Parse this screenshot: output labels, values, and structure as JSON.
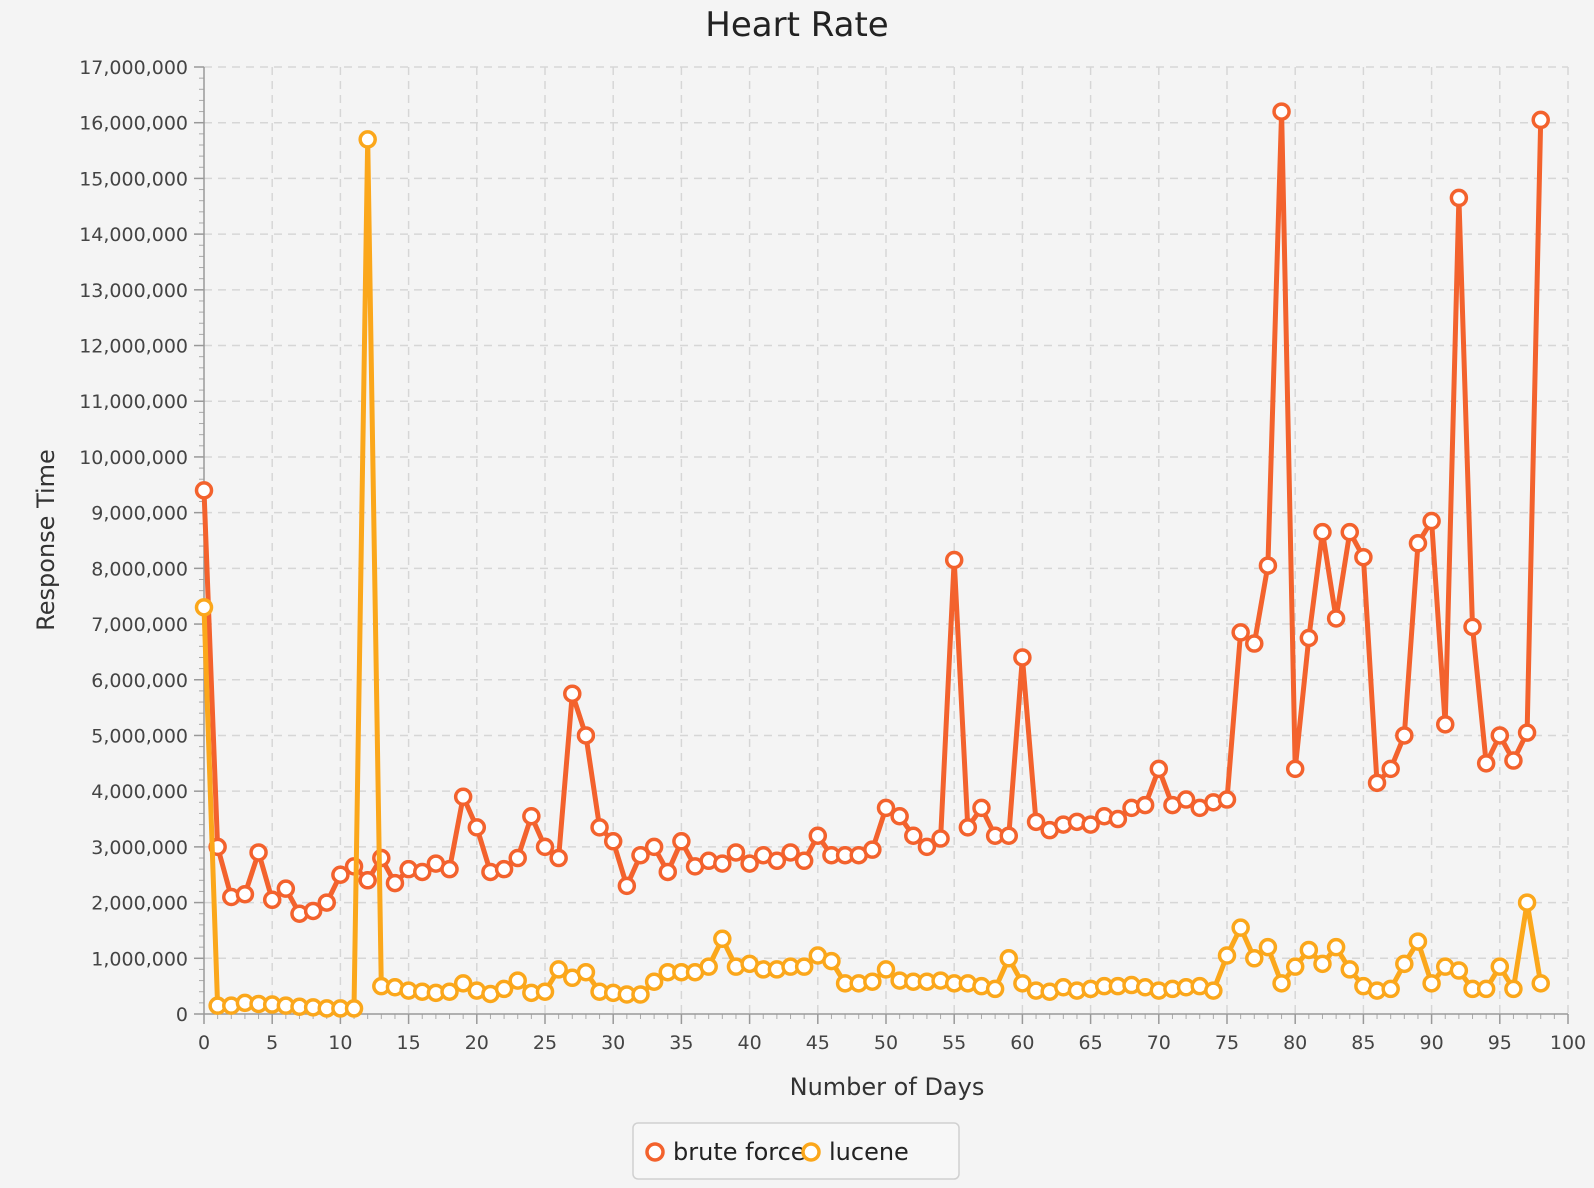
{
  "chart_data": {
    "type": "line",
    "title": "Heart Rate",
    "xlabel": "Number of Days",
    "ylabel": "Response Time",
    "xlim": [
      0,
      100
    ],
    "ylim": [
      0,
      17000000
    ],
    "x_ticks": [
      0,
      5,
      10,
      15,
      20,
      25,
      30,
      35,
      40,
      45,
      50,
      55,
      60,
      65,
      70,
      75,
      80,
      85,
      90,
      95,
      100
    ],
    "x_tick_labels": [
      "0",
      "5",
      "10",
      "15",
      "20",
      "25",
      "30",
      "35",
      "40",
      "45",
      "50",
      "55",
      "60",
      "65",
      "70",
      "75",
      "80",
      "85",
      "90",
      "95",
      "100"
    ],
    "y_ticks": [
      0,
      1000000,
      2000000,
      3000000,
      4000000,
      5000000,
      6000000,
      7000000,
      8000000,
      9000000,
      10000000,
      11000000,
      12000000,
      13000000,
      14000000,
      15000000,
      16000000,
      17000000
    ],
    "y_tick_labels": [
      "0",
      "1,000,000",
      "2,000,000",
      "3,000,000",
      "4,000,000",
      "5,000,000",
      "6,000,000",
      "7,000,000",
      "8,000,000",
      "9,000,000",
      "10,000,000",
      "11,000,000",
      "12,000,000",
      "13,000,000",
      "14,000,000",
      "15,000,000",
      "16,000,000",
      "17,000,000"
    ],
    "grid": true,
    "legend_position": "bottom-center",
    "series": [
      {
        "name": "brute force",
        "color": "#f3622d",
        "values": [
          9400000,
          3000000,
          2100000,
          2150000,
          2900000,
          2050000,
          2250000,
          1800000,
          1850000,
          2000000,
          2500000,
          2650000,
          2400000,
          2800000,
          2350000,
          2600000,
          2550000,
          2700000,
          2600000,
          3900000,
          3350000,
          2550000,
          2600000,
          2800000,
          3550000,
          3000000,
          2800000,
          5750000,
          5000000,
          3350000,
          3100000,
          2300000,
          2850000,
          3000000,
          2550000,
          3100000,
          2650000,
          2750000,
          2700000,
          2900000,
          2700000,
          2850000,
          2750000,
          2900000,
          2750000,
          3200000,
          2850000,
          2850000,
          2850000,
          2950000,
          3700000,
          3550000,
          3200000,
          3000000,
          3150000,
          8150000,
          3350000,
          3700000,
          3200000,
          3200000,
          6400000,
          3450000,
          3300000,
          3400000,
          3450000,
          3400000,
          3550000,
          3500000,
          3700000,
          3750000,
          4400000,
          3750000,
          3850000,
          3700000,
          3800000,
          3850000,
          6850000,
          6650000,
          8050000,
          16200000,
          4400000,
          6750000,
          8650000,
          7100000,
          8650000,
          8200000,
          4150000,
          4400000,
          5000000,
          8450000,
          8850000,
          5200000,
          14650000,
          6950000,
          4500000,
          5000000,
          4550000,
          5050000,
          16050000
        ]
      },
      {
        "name": "lucene",
        "color": "#fba71b",
        "values": [
          7300000,
          150000,
          150000,
          200000,
          180000,
          170000,
          150000,
          130000,
          120000,
          100000,
          100000,
          100000,
          15700000,
          500000,
          480000,
          420000,
          400000,
          380000,
          400000,
          550000,
          420000,
          360000,
          450000,
          600000,
          380000,
          400000,
          800000,
          650000,
          750000,
          400000,
          380000,
          350000,
          350000,
          580000,
          750000,
          750000,
          750000,
          850000,
          1350000,
          850000,
          900000,
          800000,
          800000,
          850000,
          850000,
          1050000,
          950000,
          550000,
          550000,
          580000,
          800000,
          600000,
          580000,
          580000,
          600000,
          550000,
          550000,
          500000,
          450000,
          1000000,
          550000,
          420000,
          400000,
          480000,
          420000,
          450000,
          500000,
          500000,
          520000,
          480000,
          420000,
          450000,
          480000,
          500000,
          420000,
          1050000,
          1550000,
          1000000,
          1200000,
          550000,
          850000,
          1150000,
          900000,
          1200000,
          800000,
          500000,
          420000,
          450000,
          900000,
          1300000,
          550000,
          850000,
          780000,
          450000,
          450000,
          850000,
          450000,
          2000000,
          550000
        ]
      }
    ]
  }
}
